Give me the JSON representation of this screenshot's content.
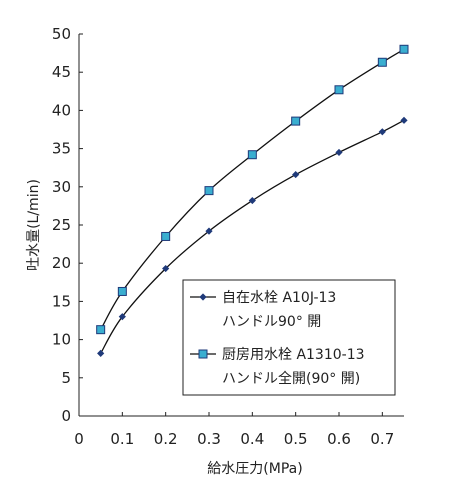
{
  "chart_data": {
    "type": "line",
    "xlabel": "給水圧力(MPa)",
    "ylabel": "吐水量(L/min)",
    "xlim": [
      0,
      0.75
    ],
    "ylim": [
      0,
      50
    ],
    "xticks": [
      0,
      0.1,
      0.2,
      0.3,
      0.4,
      0.5,
      0.6,
      0.7
    ],
    "xtick_labels": [
      "0",
      "0.1",
      "0.2",
      "0.3",
      "0.4",
      "0.5",
      "0.6",
      "0.7"
    ],
    "yticks": [
      0,
      5,
      10,
      15,
      20,
      25,
      30,
      35,
      40,
      45,
      50
    ],
    "ytick_labels": [
      "0",
      "5",
      "10",
      "15",
      "20",
      "25",
      "30",
      "35",
      "40",
      "45",
      "50"
    ],
    "grid": false,
    "legend_position": "bottom-right",
    "series": [
      {
        "name": "自在水栓 A10J-13",
        "name_line2": "ハンドル90° 開",
        "marker": "diamond",
        "color": "#1f3a7a",
        "x": [
          0.05,
          0.1,
          0.2,
          0.3,
          0.4,
          0.5,
          0.6,
          0.7,
          0.75
        ],
        "y": [
          8.2,
          13.0,
          19.3,
          24.2,
          28.2,
          31.6,
          34.5,
          37.2,
          38.7
        ]
      },
      {
        "name": "厨房用水栓 A1310-13",
        "name_line2": "ハンドル全開(90° 開)",
        "marker": "square",
        "color": "#1f3a7a",
        "fill": "#3aaed0",
        "x": [
          0.05,
          0.1,
          0.2,
          0.3,
          0.4,
          0.5,
          0.6,
          0.7,
          0.75
        ],
        "y": [
          11.3,
          16.3,
          23.5,
          29.5,
          34.2,
          38.6,
          42.7,
          46.3,
          48.0
        ]
      }
    ]
  }
}
